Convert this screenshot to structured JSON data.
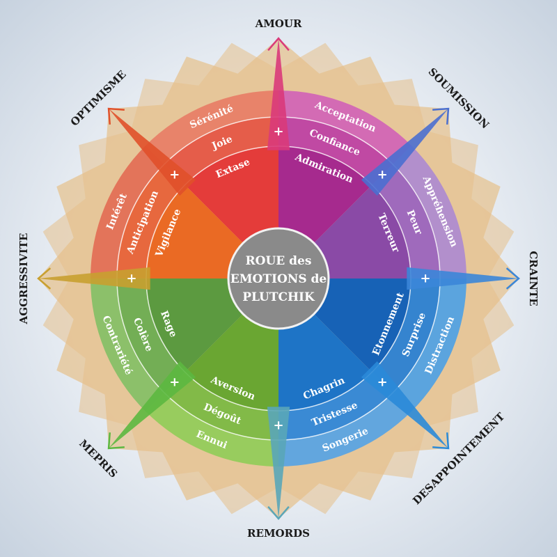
{
  "center": {
    "lines": [
      "ROUE des",
      "EMOTIONS de",
      "PLUTCHIK"
    ],
    "color": "#8a8a8a"
  },
  "dyads": [
    {
      "label": "AMOUR",
      "arrow_color": "#d93a7a"
    },
    {
      "label": "SOUMISSION",
      "arrow_color": "#4a6fd0"
    },
    {
      "label": "CRAINTE",
      "arrow_color": "#3b86d8"
    },
    {
      "label": "DESAPPOINTEMENT",
      "arrow_color": "#2a8ad8"
    },
    {
      "label": "REMORDS",
      "arrow_color": "#5aa6b8"
    },
    {
      "label": "MEPRIS",
      "arrow_color": "#5cb840"
    },
    {
      "label": "AGGRESSIVITE",
      "arrow_color": "#c8a030"
    },
    {
      "label": "OPTIMISME",
      "arrow_color": "#e0502a"
    }
  ],
  "plus_symbol": "+",
  "sectors": [
    {
      "inner": "Extase",
      "middle": "Joie",
      "outer": "Sérénité",
      "colors": [
        "#e43c3a",
        "#e55d4a",
        "#e8836a"
      ]
    },
    {
      "inner": "Admiration",
      "middle": "Confiance",
      "outer": "Acceptation",
      "colors": [
        "#a62a8e",
        "#c049a3",
        "#d36bb4"
      ]
    },
    {
      "inner": "Terreur",
      "middle": "Peur",
      "outer": "Appréhension",
      "colors": [
        "#8a4aa6",
        "#9f6abc",
        "#b28fcc"
      ]
    },
    {
      "inner": "Etonnement",
      "middle": "Surprise",
      "outer": "Distraction",
      "colors": [
        "#1762b6",
        "#3584cf",
        "#5ba4de"
      ]
    },
    {
      "inner": "Chagrin",
      "middle": "Tristesse",
      "outer": "Songerie",
      "colors": [
        "#1e74c6",
        "#3a8ad4",
        "#62a6de"
      ]
    },
    {
      "inner": "Aversion",
      "middle": "Dégoût",
      "outer": "Ennui",
      "colors": [
        "#6aa632",
        "#82ba48",
        "#98cc5e"
      ]
    },
    {
      "inner": "Rage",
      "middle": "Colère",
      "outer": "Contrariété",
      "colors": [
        "#5c9a40",
        "#73ae55",
        "#8cc06a"
      ]
    },
    {
      "inner": "Vigilance",
      "middle": "Anticipation",
      "outer": "Intérêt",
      "colors": [
        "#ea6a24",
        "#e7683e",
        "#e3745a"
      ]
    }
  ],
  "starburst_color": "#e6c08a"
}
